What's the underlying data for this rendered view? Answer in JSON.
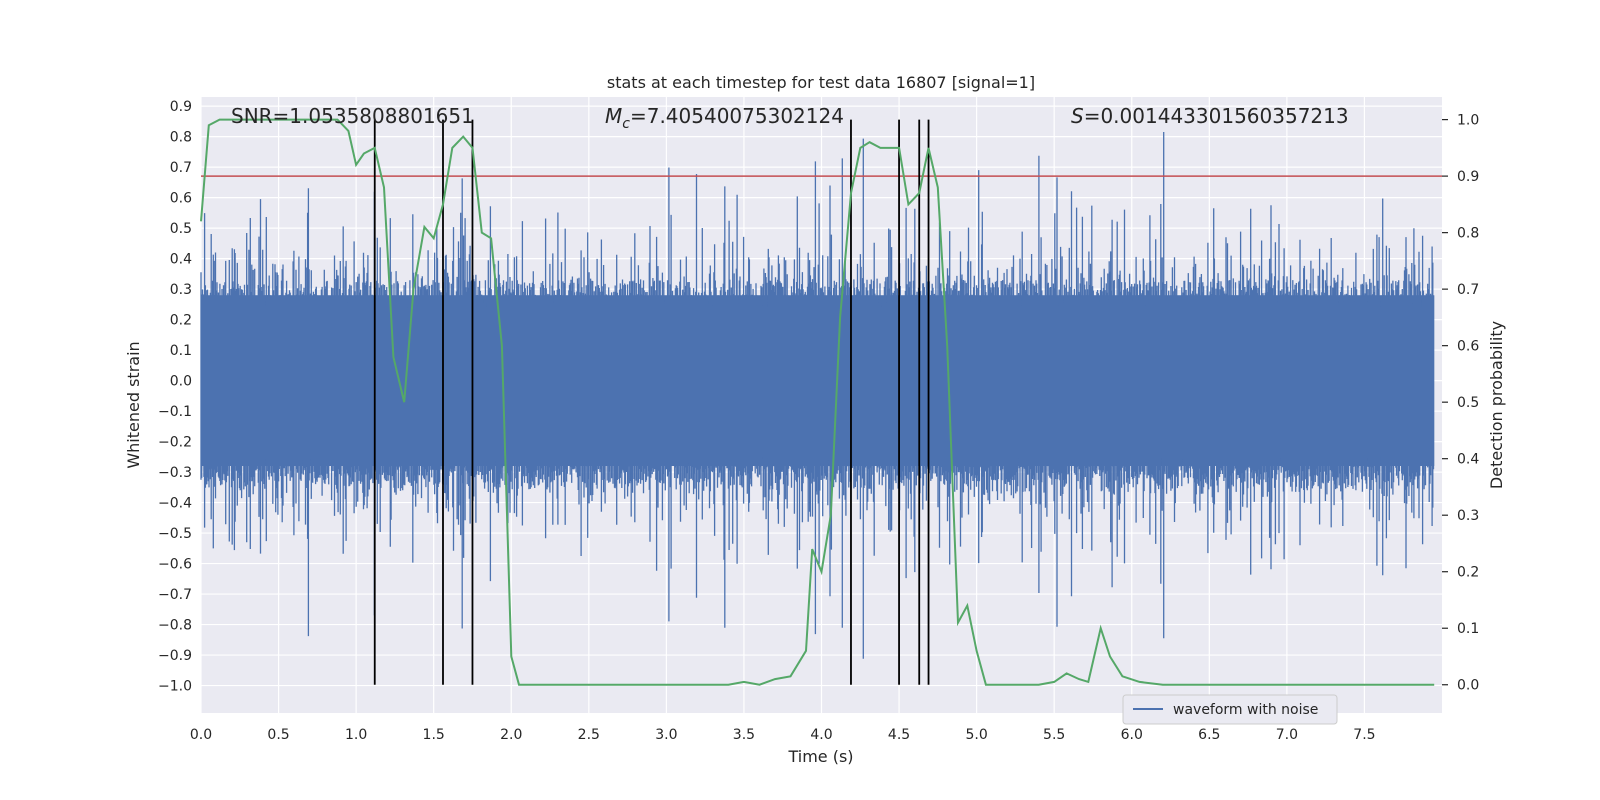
{
  "chart_data": {
    "type": "line",
    "title": "stats at each timestep for test data 16807 [signal=1]",
    "xlabel": "Time (s)",
    "ylabel": "Whitened strain",
    "y2label": "Detection probability",
    "xlim": [
      0.0,
      8.0
    ],
    "ylim": [
      -1.09,
      0.93
    ],
    "y2lim": [
      -0.05,
      1.04
    ],
    "xticks": [
      0.0,
      0.5,
      1.0,
      1.5,
      2.0,
      2.5,
      3.0,
      3.5,
      4.0,
      4.5,
      5.0,
      5.5,
      6.0,
      6.5,
      7.0,
      7.5
    ],
    "yticks": [
      0.9,
      0.8,
      0.7,
      0.6,
      0.5,
      0.4,
      0.3,
      0.2,
      0.1,
      0.0,
      -0.1,
      -0.2,
      -0.3,
      -0.4,
      -0.5,
      -0.6,
      -0.7,
      -0.8,
      -0.9,
      -1.0
    ],
    "y2ticks": [
      1.0,
      0.9,
      0.8,
      0.7,
      0.6,
      0.5,
      0.4,
      0.3,
      0.2,
      0.1,
      0.0
    ],
    "annotations": {
      "snr": "SNR=1.0535808801651",
      "mc": "Mc=7.40540075302124",
      "mc_symbol": "M",
      "mc_sub": "c",
      "mc_value": "=7.40540075302124",
      "s": "S=0.001443301560357213",
      "s_symbol": "S",
      "s_value": "=0.001443301560357213"
    },
    "threshold": {
      "value": 0.9,
      "axis": "right",
      "color": "#c44e52"
    },
    "vertical_lines": [
      1.12,
      1.56,
      1.75,
      4.19,
      4.5,
      4.63,
      4.69
    ],
    "series": [
      {
        "name": "waveform with noise",
        "axis": "left",
        "color": "#4c72b0",
        "description": "dense whitened strain noise, ~0.3 typical amplitude, spikes to about +/-0.85",
        "envelope": {
          "core": 0.28,
          "typical_peak": 0.55,
          "max_peak": 0.85,
          "min_peak": -1.0
        }
      },
      {
        "name": "Detection probability",
        "axis": "right",
        "color": "#55a868",
        "x": [
          0.0,
          0.05,
          0.12,
          0.2,
          0.3,
          0.4,
          0.5,
          0.6,
          0.7,
          0.8,
          0.88,
          0.95,
          1.0,
          1.05,
          1.12,
          1.18,
          1.24,
          1.31,
          1.37,
          1.44,
          1.5,
          1.56,
          1.62,
          1.69,
          1.75,
          1.81,
          1.87,
          1.94,
          2.0,
          2.05,
          2.2,
          2.4,
          2.6,
          2.8,
          3.0,
          3.2,
          3.4,
          3.5,
          3.6,
          3.7,
          3.8,
          3.9,
          3.94,
          4.0,
          4.06,
          4.12,
          4.19,
          4.25,
          4.31,
          4.38,
          4.44,
          4.5,
          4.56,
          4.63,
          4.69,
          4.75,
          4.81,
          4.88,
          4.94,
          5.0,
          5.06,
          5.2,
          5.4,
          5.5,
          5.58,
          5.66,
          5.72,
          5.8,
          5.86,
          5.94,
          6.05,
          6.2,
          6.5,
          7.0,
          7.5,
          7.95
        ],
        "y": [
          0.82,
          0.99,
          1.0,
          1.0,
          1.0,
          1.0,
          1.0,
          1.0,
          1.0,
          1.0,
          1.0,
          0.98,
          0.92,
          0.94,
          0.95,
          0.88,
          0.58,
          0.5,
          0.7,
          0.81,
          0.79,
          0.85,
          0.95,
          0.97,
          0.95,
          0.8,
          0.79,
          0.6,
          0.05,
          0.0,
          0.0,
          0.0,
          0.0,
          0.0,
          0.0,
          0.0,
          0.0,
          0.005,
          0.0,
          0.01,
          0.015,
          0.06,
          0.24,
          0.2,
          0.3,
          0.65,
          0.87,
          0.95,
          0.96,
          0.95,
          0.95,
          0.95,
          0.85,
          0.87,
          0.95,
          0.88,
          0.6,
          0.11,
          0.14,
          0.06,
          0.0,
          0.0,
          0.0,
          0.005,
          0.02,
          0.01,
          0.005,
          0.1,
          0.05,
          0.015,
          0.005,
          0.0,
          0.0,
          0.0,
          0.0,
          0.0
        ]
      }
    ],
    "legend": {
      "placement": "lower-right",
      "entries": [
        "waveform with noise"
      ]
    }
  }
}
